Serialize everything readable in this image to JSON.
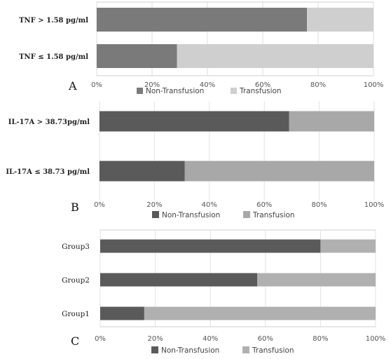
{
  "chart_data": [
    {
      "type": "bar",
      "panel": "A",
      "orientation": "horizontal",
      "stacked": true,
      "categories": [
        "TNF > 1.58 pg/ml",
        "TNF ≤ 1.58 pg/ml"
      ],
      "series": [
        {
          "name": "Non-Transfusion",
          "values": [
            76,
            29
          ],
          "color": "#7a7a7a"
        },
        {
          "name": "Transfusion",
          "values": [
            24,
            71
          ],
          "color": "#cfcfcf"
        }
      ],
      "xlim": [
        0,
        100
      ],
      "ticks": [
        "0%",
        "20%",
        "40%",
        "60%",
        "80%",
        "100%"
      ],
      "legend": "bottom",
      "grid": true
    },
    {
      "type": "bar",
      "panel": "B",
      "orientation": "horizontal",
      "stacked": true,
      "categories": [
        "IL-17A > 38.73pg/ml",
        "IL-17A ≤ 38.73 pg/ml"
      ],
      "series": [
        {
          "name": "Non-Transfusion",
          "values": [
            69,
            31
          ],
          "color": "#5a5a5a"
        },
        {
          "name": "Transfusion",
          "values": [
            31,
            69
          ],
          "color": "#a8a8a8"
        }
      ],
      "xlim": [
        0,
        100
      ],
      "ticks": [
        "0%",
        "20%",
        "40%",
        "60%",
        "80%",
        "100%"
      ],
      "legend": "bottom",
      "grid": true
    },
    {
      "type": "bar",
      "panel": "C",
      "orientation": "horizontal",
      "stacked": true,
      "categories": [
        "Group3",
        "Group2",
        "Group1"
      ],
      "series": [
        {
          "name": "Non-Transfusion",
          "values": [
            80,
            57,
            16
          ],
          "color": "#5a5a5a"
        },
        {
          "name": "Transfusion",
          "values": [
            20,
            43,
            84
          ],
          "color": "#b0b0b0"
        }
      ],
      "xlim": [
        0,
        100
      ],
      "ticks": [
        "0%",
        "20%",
        "40%",
        "60%",
        "80%",
        "100%"
      ],
      "legend": "bottom",
      "grid": true
    }
  ]
}
